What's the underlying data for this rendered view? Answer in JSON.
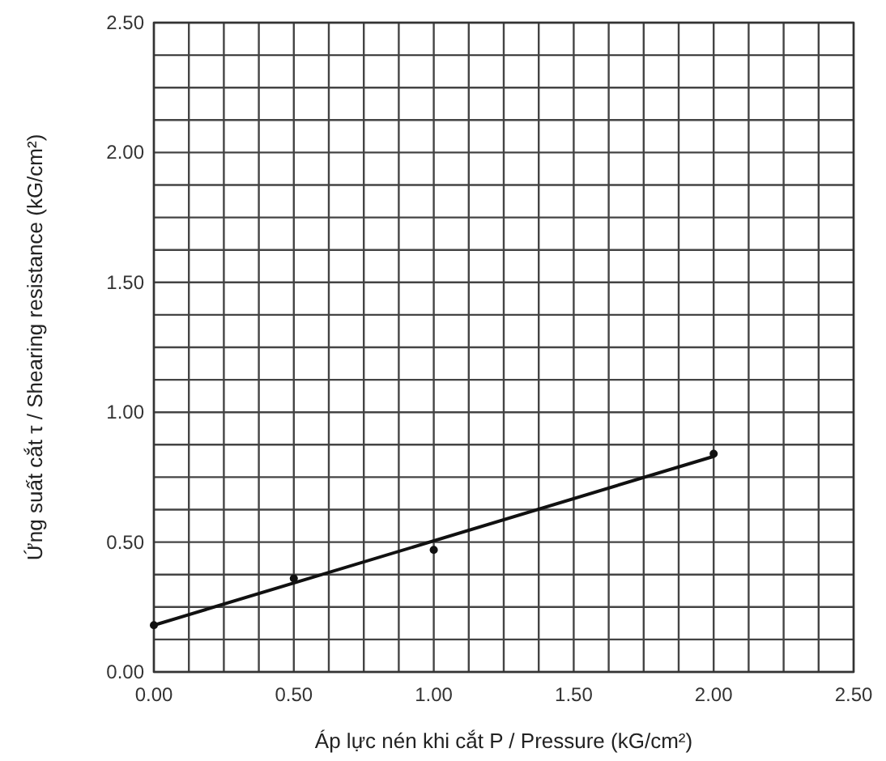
{
  "chart_data": {
    "type": "scatter",
    "xlabel": "Áp lực nén khi cắt P / Pressure (kG/cm²)",
    "ylabel": "Ứng suất cắt τ / Shearing resistance (kG/cm²)",
    "xlim": [
      0,
      2.5
    ],
    "ylim": [
      0,
      2.5
    ],
    "xticks": [
      {
        "value": 0,
        "label": "0.00"
      },
      {
        "value": 0.125,
        "label": null
      },
      {
        "value": 0.25,
        "label": null
      },
      {
        "value": 0.375,
        "label": null
      },
      {
        "value": 0.5,
        "label": "0.50"
      },
      {
        "value": 0.625,
        "label": null
      },
      {
        "value": 0.75,
        "label": null
      },
      {
        "value": 0.875,
        "label": null
      },
      {
        "value": 1,
        "label": "1.00"
      },
      {
        "value": 1.125,
        "label": null
      },
      {
        "value": 1.25,
        "label": null
      },
      {
        "value": 1.375,
        "label": null
      },
      {
        "value": 1.5,
        "label": "1.50"
      },
      {
        "value": 1.625,
        "label": null
      },
      {
        "value": 1.75,
        "label": null
      },
      {
        "value": 1.875,
        "label": null
      },
      {
        "value": 2,
        "label": "2.00"
      },
      {
        "value": 2.125,
        "label": null
      },
      {
        "value": 2.25,
        "label": null
      },
      {
        "value": 2.375,
        "label": null
      },
      {
        "value": 2.5,
        "label": "2.50"
      }
    ],
    "yticks": [
      {
        "value": 0,
        "label": "0.00"
      },
      {
        "value": 0.125,
        "label": null
      },
      {
        "value": 0.25,
        "label": null
      },
      {
        "value": 0.375,
        "label": null
      },
      {
        "value": 0.5,
        "label": "0.50"
      },
      {
        "value": 0.625,
        "label": null
      },
      {
        "value": 0.75,
        "label": null
      },
      {
        "value": 0.875,
        "label": null
      },
      {
        "value": 1,
        "label": "1.00"
      },
      {
        "value": 1.125,
        "label": null
      },
      {
        "value": 1.25,
        "label": null
      },
      {
        "value": 1.375,
        "label": null
      },
      {
        "value": 1.5,
        "label": "1.50"
      },
      {
        "value": 1.625,
        "label": null
      },
      {
        "value": 1.75,
        "label": null
      },
      {
        "value": 1.875,
        "label": null
      },
      {
        "value": 2,
        "label": "2.00"
      },
      {
        "value": 2.125,
        "label": null
      },
      {
        "value": 2.25,
        "label": null
      },
      {
        "value": 2.375,
        "label": null
      },
      {
        "value": 2.5,
        "label": "2.50"
      }
    ],
    "grid": true,
    "marker": "circle",
    "series": [
      {
        "type": "scatter",
        "color": "#111111",
        "x": [
          0,
          0.5,
          1,
          2
        ],
        "values": [
          0.18,
          0.36,
          0.47,
          0.84
        ]
      },
      {
        "type": "line",
        "color": "#111111",
        "x": [
          0,
          2
        ],
        "values": [
          0.18,
          0.83
        ],
        "marker": "none"
      }
    ]
  }
}
